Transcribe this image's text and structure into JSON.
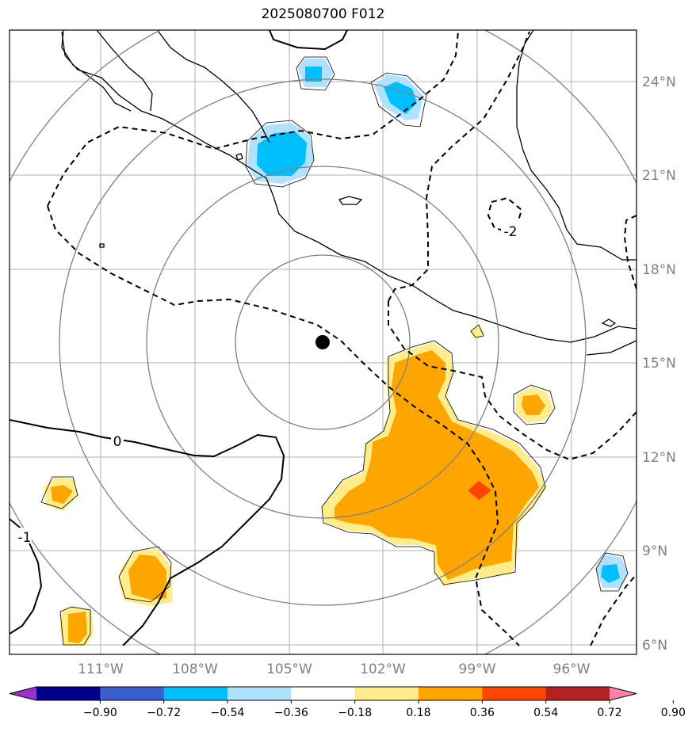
{
  "title": "2025080700 F012",
  "lat_labels": [
    "24°N",
    "21°N",
    "18°N",
    "15°N",
    "12°N",
    "9°N",
    "6°N"
  ],
  "lon_labels": [
    "111°W",
    "108°W",
    "105°W",
    "102°W",
    "99°W",
    "96°W"
  ],
  "contour_labels": [
    "0",
    "-2",
    "-1"
  ],
  "colorbar": {
    "labels": [
      "−0.90",
      "−0.72",
      "−0.54",
      "−0.36",
      "−0.18",
      "0.18",
      "0.36",
      "0.54",
      "0.72",
      "0.90"
    ],
    "colors": [
      "#9932cc",
      "#00008b",
      "#3a5fcd",
      "#00bfff",
      "#b0e2ff",
      "#ffffff",
      "#ffec8b",
      "#ffa500",
      "#ff4500",
      "#b22222",
      "#ff82ab"
    ]
  },
  "map": {
    "land_color": "#ffffff",
    "grid_color": "#a0a0a0",
    "center_marker": "filled-circle"
  }
}
